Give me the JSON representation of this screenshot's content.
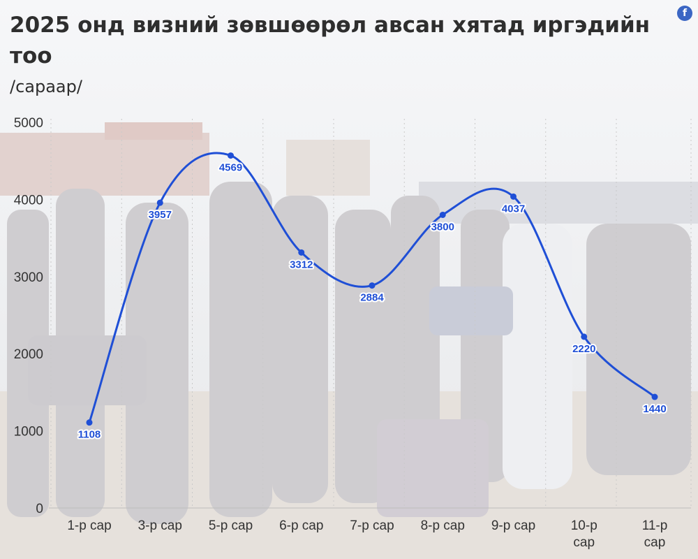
{
  "title": "2025 онд визний зөвшөөрөл авсан хятад иргэдийн тоо",
  "subtitle": "/сараар/",
  "icons": {
    "social": "facebook-icon",
    "social_glyph": "f"
  },
  "colors": {
    "line": "#1f4fd6",
    "label_text": "#1f4fd6",
    "axis_text": "#333333",
    "grid": "#c9c9c9"
  },
  "chart_data": {
    "type": "line",
    "categories": [
      "1-р сар",
      "3-р сар",
      "5-р сар",
      "6-р сар",
      "7-р сар",
      "8-р сар",
      "9-р сар",
      "10-р сар",
      "11-р сар"
    ],
    "values": [
      1108,
      3957,
      4569,
      3312,
      2884,
      3800,
      4037,
      2220,
      1440
    ],
    "ylim": [
      0,
      5000
    ],
    "yticks": [
      0,
      1000,
      2000,
      3000,
      4000,
      5000
    ],
    "grid": "vertical dotted",
    "data_labels": true
  }
}
